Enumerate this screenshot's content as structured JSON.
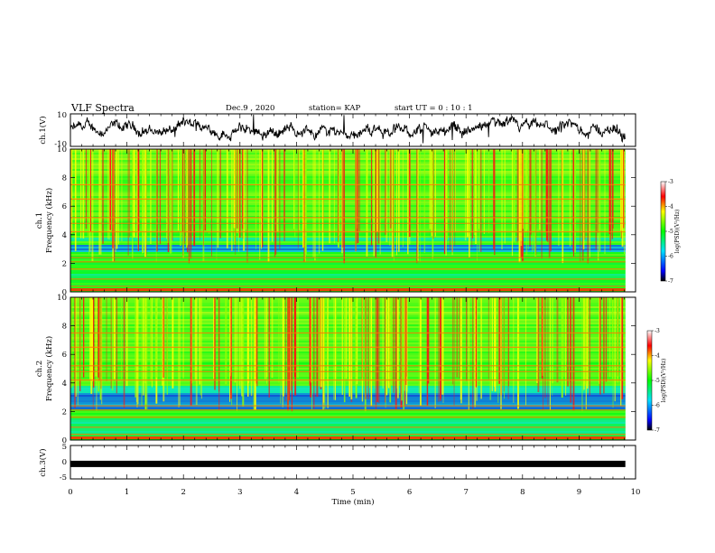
{
  "header": {
    "title": "VLF Spectra",
    "date": "Dec.9  , 2020",
    "station": "station= KAP",
    "start": "start  UT =   0  : 10 : 1"
  },
  "chart_data": [
    {
      "type": "line",
      "name": "ch1-waveform",
      "ylabel": "ch.1(V)",
      "ylim": [
        -10,
        10
      ],
      "yticks": [
        "10",
        "-10"
      ],
      "xlim": [
        0,
        10
      ],
      "x_end": 9.82
    },
    {
      "type": "heatmap",
      "name": "ch1-spectrogram",
      "ylabel_line1": "ch.1",
      "ylabel_line2": "Frequency  (kHz)",
      "ylim": [
        0,
        10
      ],
      "yticks": [
        "0",
        "2",
        "4",
        "6",
        "8",
        "10"
      ],
      "xlim": [
        0,
        10
      ],
      "x_end": 9.82,
      "colorbar": {
        "label": "log(PSD)(V²/Hz)",
        "range": [
          -7,
          -3
        ],
        "ticks": [
          "-3",
          "-4",
          "-5",
          "-6",
          "-7"
        ]
      }
    },
    {
      "type": "heatmap",
      "name": "ch2-spectrogram",
      "ylabel_line1": "ch.2",
      "ylabel_line2": "Frequency  (kHz)",
      "ylim": [
        0,
        10
      ],
      "yticks": [
        "0",
        "2",
        "4",
        "6",
        "8",
        "10"
      ],
      "xlim": [
        0,
        10
      ],
      "x_end": 9.82,
      "colorbar": {
        "label": "log(PSD)(V²/Hz)",
        "range": [
          -7,
          -3
        ],
        "ticks": [
          "-3",
          "-4",
          "-5",
          "-6",
          "-7"
        ]
      }
    },
    {
      "type": "line",
      "name": "ch3-waveform",
      "ylabel": "ch.3(V)",
      "ylim": [
        -5,
        5
      ],
      "yticks": [
        "5",
        "0",
        "-5"
      ],
      "xlim": [
        0,
        10
      ],
      "x_end": 9.82,
      "constant_value": -0.5
    }
  ],
  "xaxis": {
    "label": "Time  (min)",
    "ticks": [
      "0",
      "1",
      "2",
      "3",
      "4",
      "5",
      "6",
      "7",
      "8",
      "9",
      "10"
    ]
  }
}
